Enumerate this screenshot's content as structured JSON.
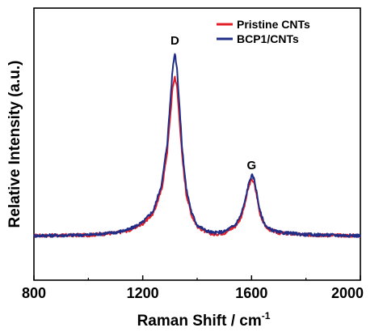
{
  "chart_data": {
    "type": "line",
    "title": "",
    "xlabel_main": "Raman Shift / cm",
    "xlabel_sup": "-1",
    "ylabel": "Relative Intensity (a.u.)",
    "xlim": [
      800,
      2000
    ],
    "ylim": [
      0,
      1
    ],
    "grid": false,
    "legend_position": "top-right",
    "xticks": [
      800,
      1200,
      1600,
      2000
    ],
    "xtick_labels": [
      "800",
      "1200",
      "1600",
      "2000"
    ],
    "yticks_visible": false,
    "annotations": [
      {
        "text": "D",
        "x": 1318,
        "y": 0.9
      },
      {
        "text": "G",
        "x": 1600,
        "y": 0.37
      }
    ],
    "series": [
      {
        "name": "Pristine CNTs",
        "color": "#e3202a",
        "x": [
          800,
          900,
          1000,
          1100,
          1150,
          1200,
          1240,
          1270,
          1290,
          1300,
          1310,
          1318,
          1326,
          1335,
          1345,
          1360,
          1380,
          1400,
          1430,
          1460,
          1500,
          1540,
          1560,
          1575,
          1585,
          1595,
          1602,
          1610,
          1620,
          1630,
          1645,
          1660,
          1700,
          1800,
          1900,
          2000
        ],
        "y": [
          0.025,
          0.026,
          0.027,
          0.035,
          0.045,
          0.07,
          0.11,
          0.2,
          0.34,
          0.46,
          0.58,
          0.62,
          0.58,
          0.46,
          0.32,
          0.18,
          0.1,
          0.06,
          0.04,
          0.03,
          0.035,
          0.06,
          0.09,
          0.14,
          0.19,
          0.225,
          0.235,
          0.22,
          0.17,
          0.11,
          0.07,
          0.05,
          0.035,
          0.028,
          0.026,
          0.025
        ]
      },
      {
        "name": "BCP1/CNTs",
        "color": "#1f2d86",
        "x": [
          800,
          900,
          1000,
          1100,
          1150,
          1200,
          1240,
          1270,
          1290,
          1300,
          1310,
          1318,
          1326,
          1335,
          1345,
          1360,
          1380,
          1400,
          1430,
          1460,
          1500,
          1540,
          1560,
          1575,
          1585,
          1595,
          1602,
          1610,
          1620,
          1630,
          1645,
          1660,
          1700,
          1800,
          1900,
          2000
        ],
        "y": [
          0.025,
          0.026,
          0.028,
          0.037,
          0.048,
          0.075,
          0.12,
          0.22,
          0.37,
          0.51,
          0.65,
          0.71,
          0.65,
          0.51,
          0.35,
          0.2,
          0.11,
          0.065,
          0.045,
          0.035,
          0.04,
          0.065,
          0.1,
          0.15,
          0.2,
          0.24,
          0.25,
          0.235,
          0.18,
          0.12,
          0.075,
          0.052,
          0.037,
          0.029,
          0.027,
          0.025
        ]
      }
    ]
  }
}
